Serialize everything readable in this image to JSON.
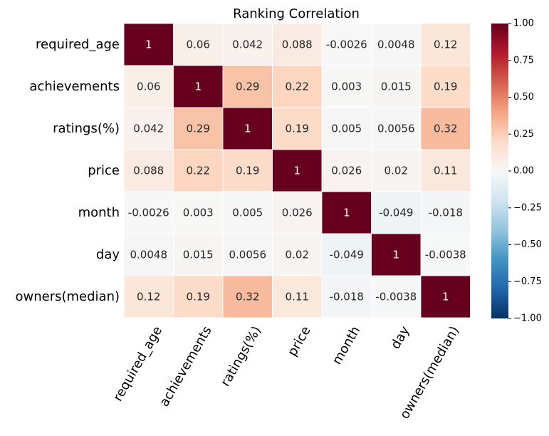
{
  "chart_data": {
    "type": "heatmap",
    "title": "Ranking Correlation",
    "rows": [
      "required_age",
      "achievements",
      "ratings(%)",
      "price",
      "month",
      "day",
      "owners(median)"
    ],
    "cols": [
      "required_age",
      "achievements",
      "ratings(%)",
      "price",
      "month",
      "day",
      "owners(median)"
    ],
    "values": [
      [
        1,
        0.06,
        0.042,
        0.088,
        -0.0026,
        0.0048,
        0.12
      ],
      [
        0.06,
        1,
        0.29,
        0.22,
        0.003,
        0.015,
        0.19
      ],
      [
        0.042,
        0.29,
        1,
        0.19,
        0.005,
        0.0056,
        0.32
      ],
      [
        0.088,
        0.22,
        0.19,
        1,
        0.026,
        0.02,
        0.11
      ],
      [
        -0.0026,
        0.003,
        0.005,
        0.026,
        1,
        -0.049,
        -0.018
      ],
      [
        0.0048,
        0.015,
        0.0056,
        0.02,
        -0.049,
        1,
        -0.0038
      ],
      [
        0.12,
        0.19,
        0.32,
        0.11,
        -0.018,
        -0.0038,
        1
      ]
    ],
    "labels": [
      [
        "1",
        "0.06",
        "0.042",
        "0.088",
        "-0.0026",
        "0.0048",
        "0.12"
      ],
      [
        "0.06",
        "1",
        "0.29",
        "0.22",
        "0.003",
        "0.015",
        "0.19"
      ],
      [
        "0.042",
        "0.29",
        "1",
        "0.19",
        "0.005",
        "0.0056",
        "0.32"
      ],
      [
        "0.088",
        "0.22",
        "0.19",
        "1",
        "0.026",
        "0.02",
        "0.11"
      ],
      [
        "-0.0026",
        "0.003",
        "0.005",
        "0.026",
        "1",
        "-0.049",
        "-0.018"
      ],
      [
        "0.0048",
        "0.015",
        "0.0056",
        "0.02",
        "-0.049",
        "1",
        "-0.0038"
      ],
      [
        "0.12",
        "0.19",
        "0.32",
        "0.11",
        "-0.018",
        "-0.0038",
        "1"
      ]
    ],
    "vmin": -1,
    "vmax": 1,
    "colormap": "RdBu_r",
    "colorbar_ticks": [
      "1.00",
      "0.75",
      "0.50",
      "0.25",
      "0.00",
      "−0.25",
      "−0.50",
      "−0.75",
      "−1.00"
    ],
    "colorbar_tick_values": [
      1,
      0.75,
      0.5,
      0.25,
      0,
      -0.25,
      -0.5,
      -0.75,
      -1
    ],
    "colorbar_stops": [
      "#053061",
      "#2166ac",
      "#4393c3",
      "#92c5de",
      "#d1e5f0",
      "#f7f7f7",
      "#fddbc7",
      "#f4a582",
      "#d6604d",
      "#b2182b",
      "#67001f"
    ],
    "gridlines": "white",
    "annotations": true
  }
}
